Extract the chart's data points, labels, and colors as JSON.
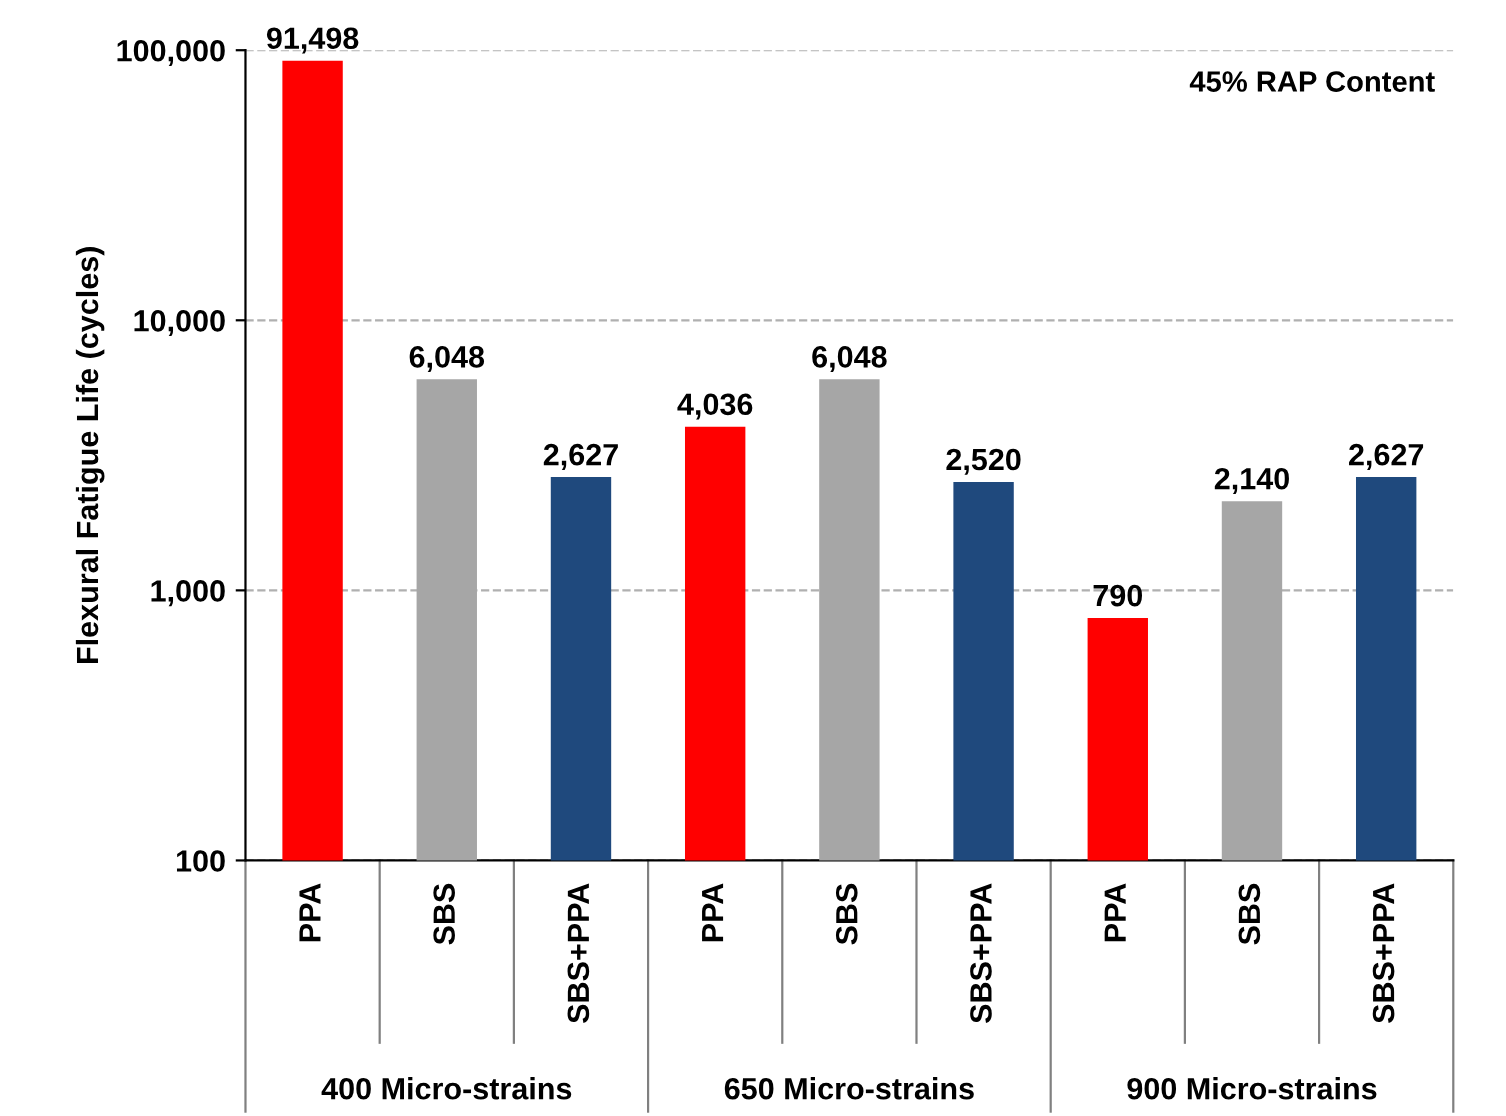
{
  "chart_data": {
    "type": "bar",
    "ylabel": "Flexural Fatigue Life (cycles)",
    "categories": [
      "PPA",
      "SBS",
      "SBS+PPA",
      "PPA",
      "SBS",
      "SBS+PPA",
      "PPA",
      "SBS",
      "SBS+PPA"
    ],
    "values": [
      91498,
      6048,
      2627,
      4036,
      6048,
      2520,
      790,
      2140,
      2627
    ],
    "colors": [
      "#ff0000",
      "#a6a6a6",
      "#1f497d",
      "#ff0000",
      "#a6a6a6",
      "#1f497d",
      "#ff0000",
      "#a6a6a6",
      "#1f497d"
    ],
    "value_labels": [
      "91,498",
      "6,048",
      "2,627",
      "4,036",
      "6,048",
      "2,520",
      "790",
      "2,140",
      "2,627"
    ],
    "log": "y",
    "ylim": [
      100,
      100000
    ],
    "yticks": [
      100,
      {
        "value": 1000,
        "label": "1,000"
      },
      {
        "value": 10000,
        "label": "10,000"
      },
      {
        "value": 100000,
        "label": "100,000"
      }
    ],
    "grid": "y",
    "annotations": [
      "45% RAP Content",
      "400 Micro-strains",
      "650 Micro-strains",
      "900 Micro-strains"
    ]
  }
}
